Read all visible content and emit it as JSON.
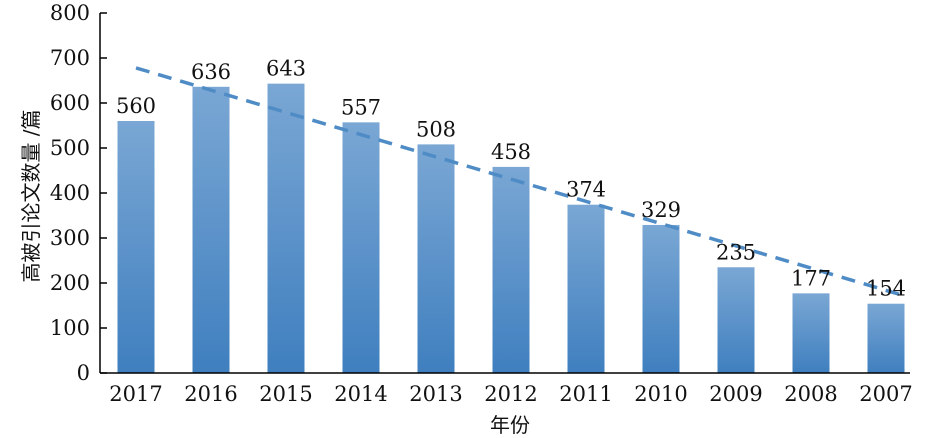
{
  "chart_data": {
    "type": "bar",
    "title": "",
    "xlabel": "年份",
    "ylabel": "高被引论文数量 /篇",
    "categories": [
      "2017",
      "2016",
      "2015",
      "2014",
      "2013",
      "2012",
      "2011",
      "2010",
      "2009",
      "2008",
      "2007"
    ],
    "values": [
      560,
      636,
      643,
      557,
      508,
      458,
      374,
      329,
      235,
      177,
      154
    ],
    "data_labels": [
      "560",
      "636",
      "643",
      "557",
      "508",
      "458",
      "374",
      "329",
      "235",
      "177",
      "154"
    ],
    "ylim": [
      0,
      800
    ],
    "yticks": [
      0,
      100,
      200,
      300,
      400,
      500,
      600,
      700,
      800
    ],
    "ytick_labels": [
      "0",
      "100",
      "200",
      "300",
      "400",
      "500",
      "600",
      "700",
      "800"
    ],
    "trendline": {
      "style": "dashed",
      "start": {
        "x": "2017",
        "y": 678
      },
      "end": {
        "x": "2007",
        "y": 154
      }
    },
    "grid": false,
    "legend": "none",
    "colors": {
      "bar_top": "#7aa7d4",
      "bar_bottom": "#3f7fbf",
      "trendline": "#4f8cc6",
      "axis": "#000000"
    }
  }
}
